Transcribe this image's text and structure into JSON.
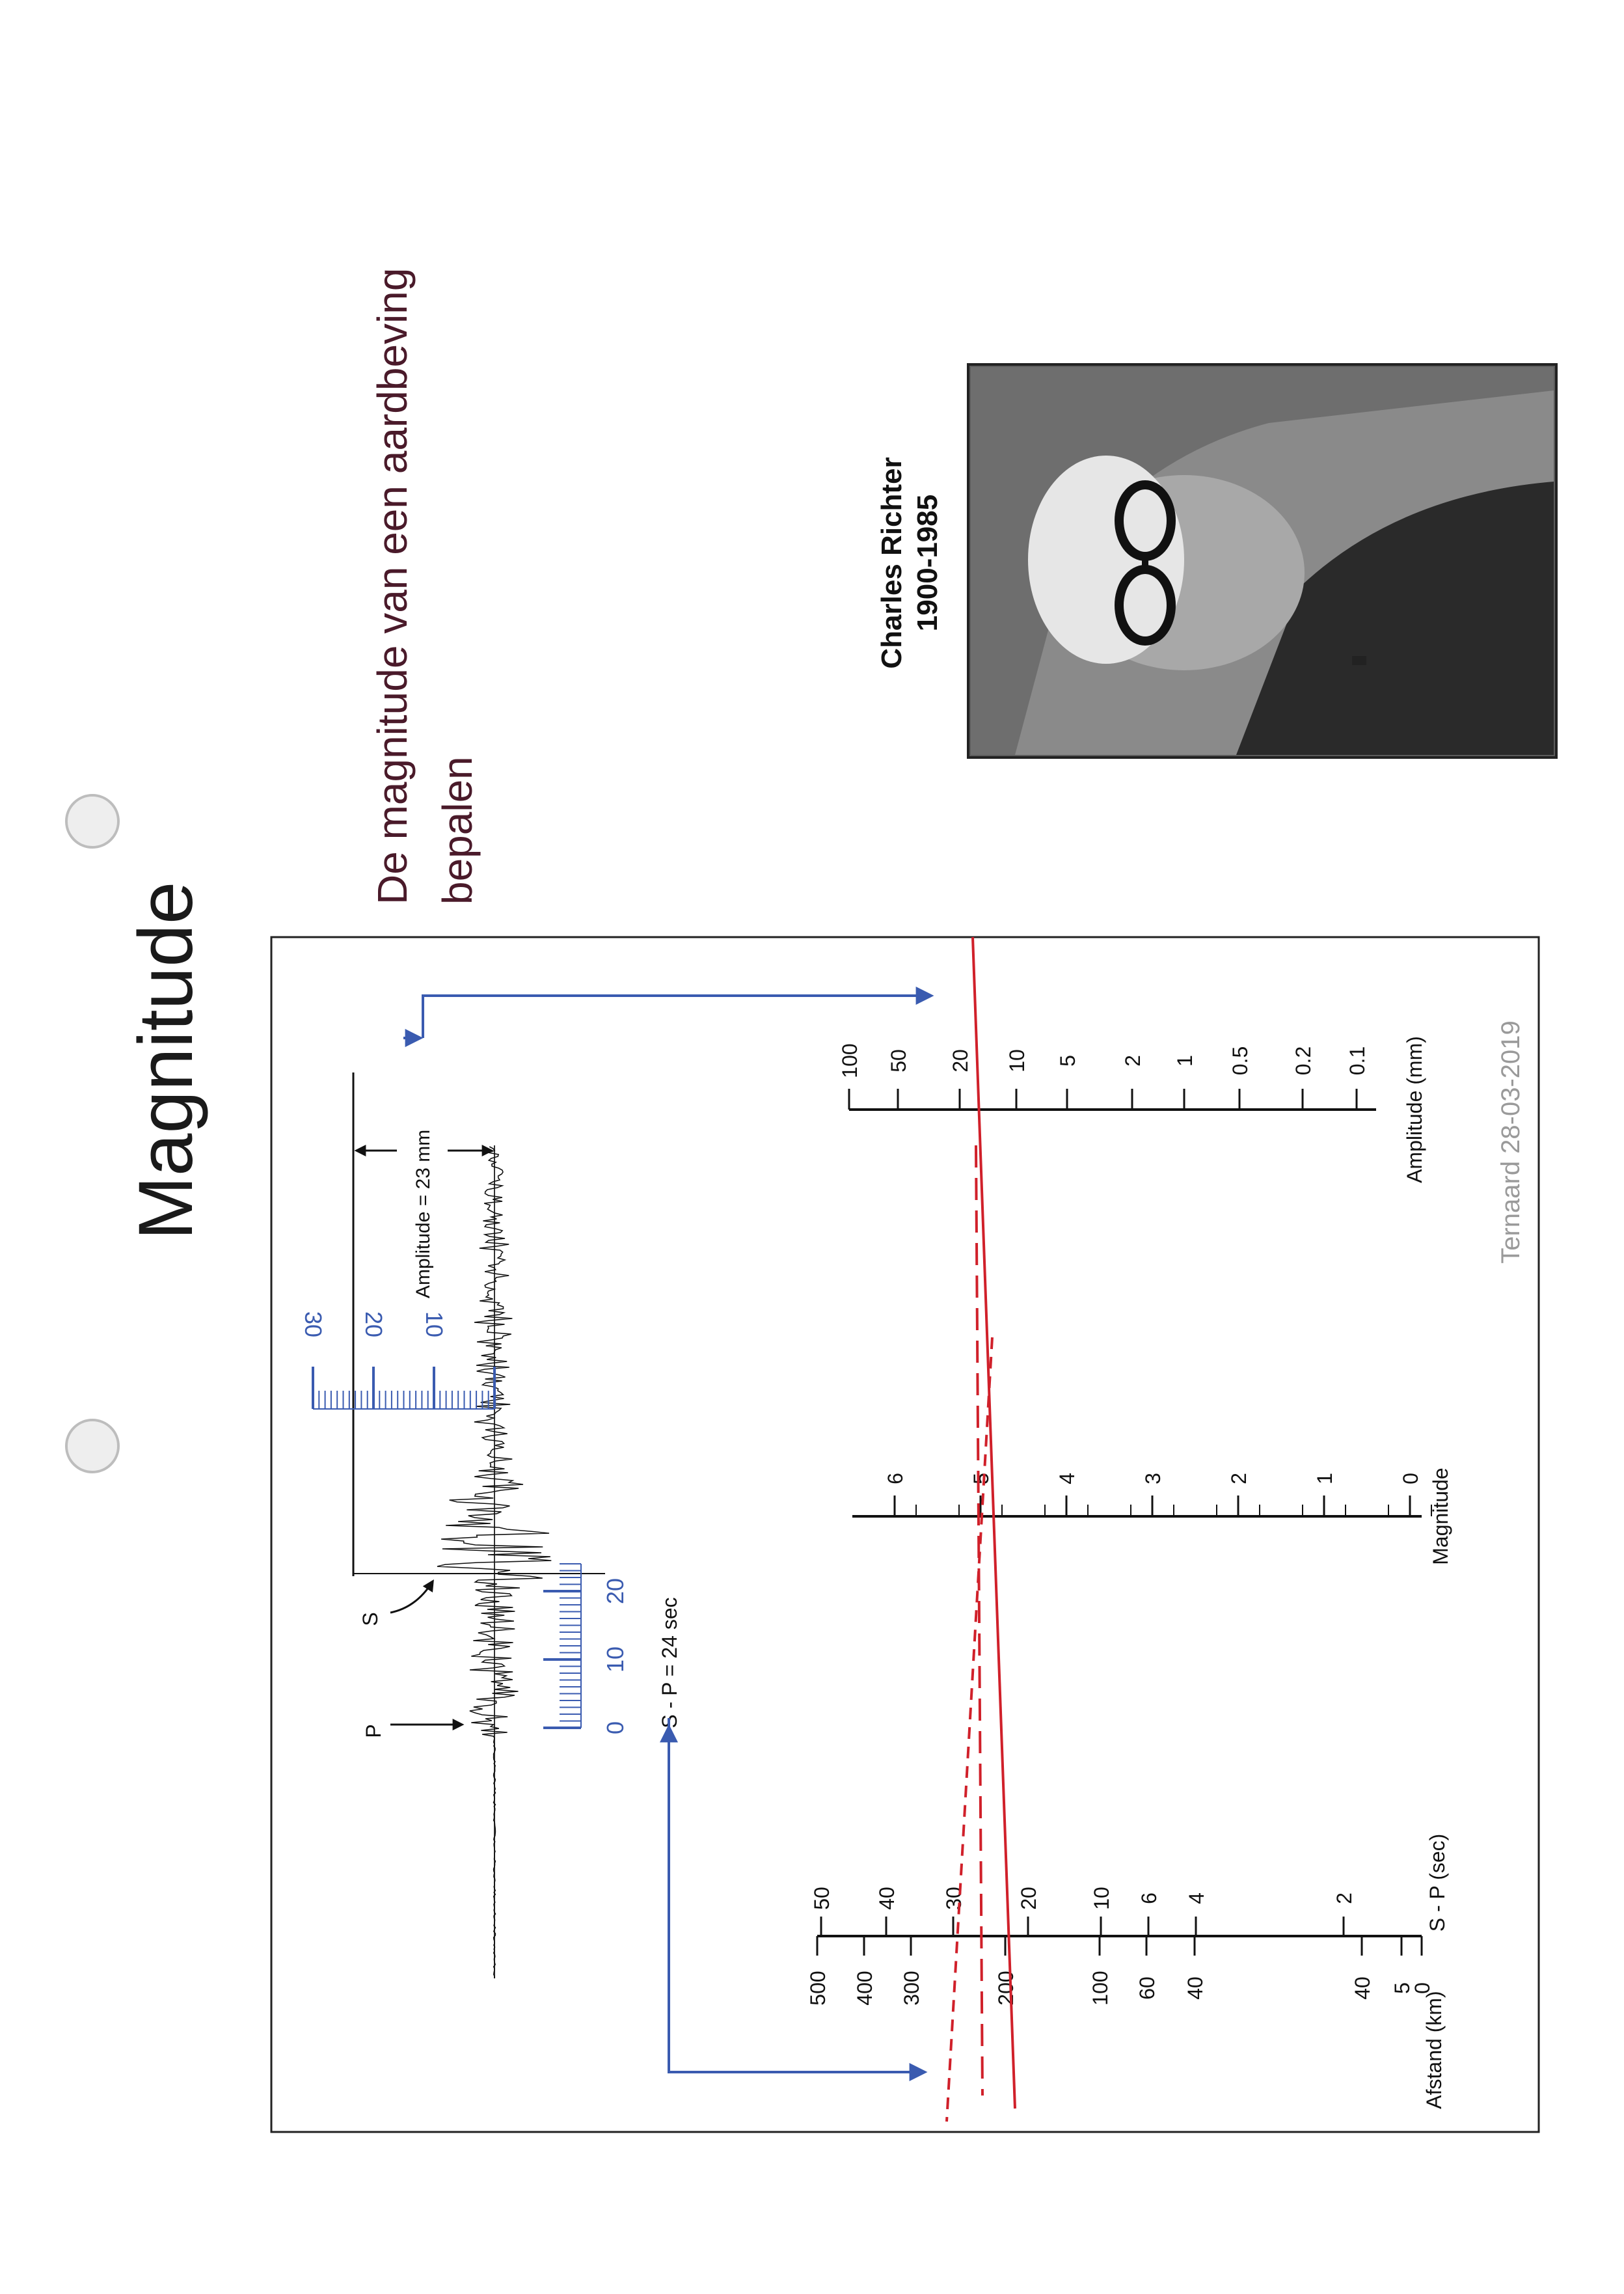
{
  "slide": {
    "title": "Magnitude",
    "subtitle_line1": "De magnitude van een aardbeving",
    "subtitle_line2": "bepalen",
    "footer": "Ternaard 28-03-2019"
  },
  "portrait": {
    "name": "Charles Richter",
    "years": "1900-1985"
  },
  "seismogram": {
    "p_label": "P",
    "s_label": "S",
    "amplitude_label": "Amplitude = 23 mm",
    "sp_label": "S - P = 24 sec",
    "time_ruler_ticks": [
      "0",
      "10",
      "20"
    ],
    "amp_ruler_ticks": [
      "10",
      "20",
      "30"
    ]
  },
  "nomogram": {
    "distance_title": "Afstand (km)",
    "sp_title": "S - P (sec)",
    "magnitude_title": "Magnitude",
    "amplitude_title": "Amplitude (mm)",
    "distance_ticks": [
      "500",
      "400",
      "300",
      "200",
      "100",
      "60",
      "40",
      "40",
      "5",
      "0"
    ],
    "sp_ticks": [
      "50",
      "40",
      "30",
      "20",
      "10",
      "6",
      "4",
      "2"
    ],
    "magnitude_ticks": [
      "6",
      "5",
      "4",
      "3",
      "2",
      "1",
      "0"
    ],
    "amplitude_ticks": [
      "100",
      "50",
      "20",
      "10",
      "5",
      "2",
      "1",
      "0.5",
      "0.2",
      "0.1"
    ]
  },
  "colors": {
    "title": "#1a1a1a",
    "subtitle": "#4a1a2a",
    "footer": "#9a9a9a",
    "blue": "#3a5bb0",
    "red": "#d0202a"
  }
}
